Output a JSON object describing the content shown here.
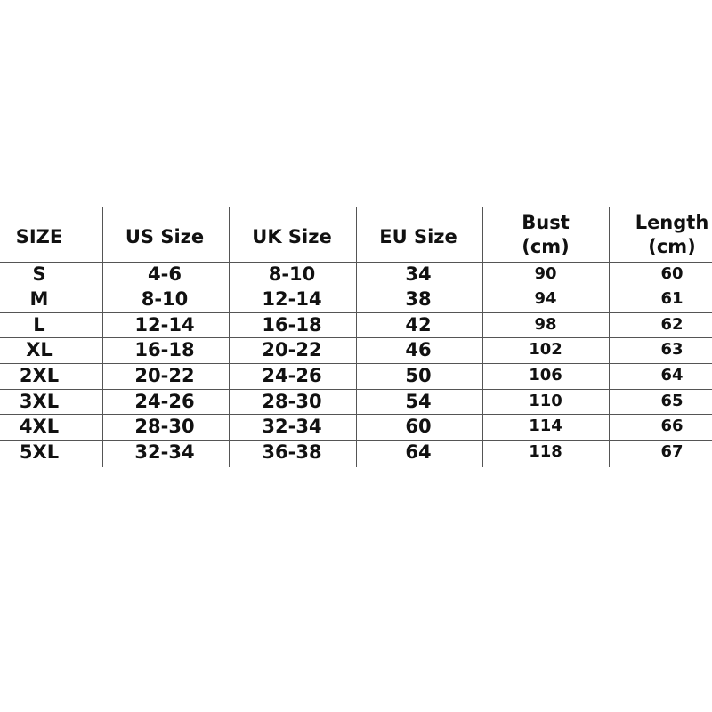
{
  "table": {
    "headers": [
      "SIZE",
      "US Size",
      "UK Size",
      "EU Size",
      "Bust\n(cm)",
      "Length\n(cm)"
    ],
    "header_lines": [
      [
        "SIZE"
      ],
      [
        "US Size"
      ],
      [
        "UK Size"
      ],
      [
        "EU Size"
      ],
      [
        "Bust",
        "(cm)"
      ],
      [
        "Length",
        "(cm)"
      ]
    ],
    "rows": [
      [
        "S",
        "4-6",
        "8-10",
        "34",
        "90",
        "60"
      ],
      [
        "M",
        "8-10",
        "12-14",
        "38",
        "94",
        "61"
      ],
      [
        "L",
        "12-14",
        "16-18",
        "42",
        "98",
        "62"
      ],
      [
        "XL",
        "16-18",
        "20-22",
        "46",
        "102",
        "63"
      ],
      [
        "2XL",
        "20-22",
        "24-26",
        "50",
        "106",
        "64"
      ],
      [
        "3XL",
        "24-26",
        "28-30",
        "54",
        "110",
        "65"
      ],
      [
        "4XL",
        "28-30",
        "32-34",
        "60",
        "114",
        "66"
      ],
      [
        "5XL",
        "32-34",
        "36-38",
        "64",
        "118",
        "67"
      ]
    ]
  }
}
